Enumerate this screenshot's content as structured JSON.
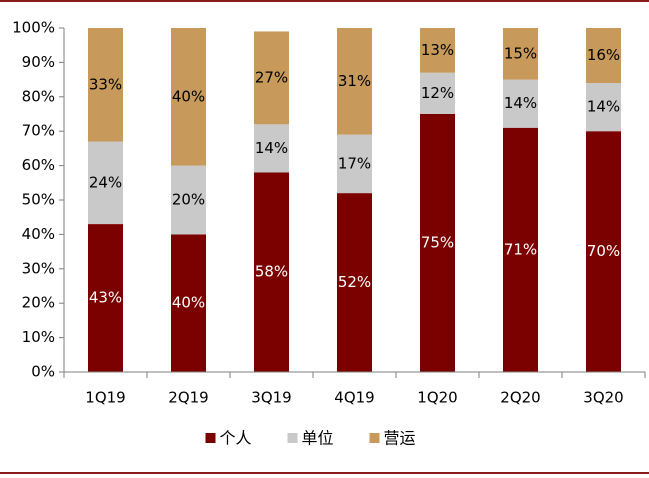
{
  "chart_data": {
    "type": "bar",
    "stacked": true,
    "percent": true,
    "title": "",
    "xlabel": "",
    "ylabel": "",
    "ylim": [
      0,
      100
    ],
    "yticks": [
      "0%",
      "10%",
      "20%",
      "30%",
      "40%",
      "50%",
      "60%",
      "70%",
      "80%",
      "90%",
      "100%"
    ],
    "categories": [
      "1Q19",
      "2Q19",
      "3Q19",
      "4Q19",
      "1Q20",
      "2Q20",
      "3Q20"
    ],
    "series": [
      {
        "name": "个人",
        "color": "#7b0000",
        "label_color": "#ffffff",
        "values": [
          43,
          40,
          58,
          52,
          75,
          71,
          70
        ],
        "labels": [
          "43%",
          "40%",
          "58%",
          "52%",
          "75%",
          "71%",
          "70%"
        ]
      },
      {
        "name": "单位",
        "color": "#c9c9c9",
        "label_color": "#000000",
        "values": [
          24,
          20,
          14,
          17,
          12,
          14,
          14
        ],
        "labels": [
          "24%",
          "20%",
          "14%",
          "17%",
          "12%",
          "14%",
          "14%"
        ]
      },
      {
        "name": "营运",
        "color": "#c79a5b",
        "label_color": "#000000",
        "values": [
          33,
          40,
          27,
          31,
          13,
          15,
          16
        ],
        "labels": [
          "33%",
          "40%",
          "27%",
          "31%",
          "13%",
          "15%",
          "16%"
        ]
      }
    ],
    "legend": "bottom",
    "grid": false
  }
}
